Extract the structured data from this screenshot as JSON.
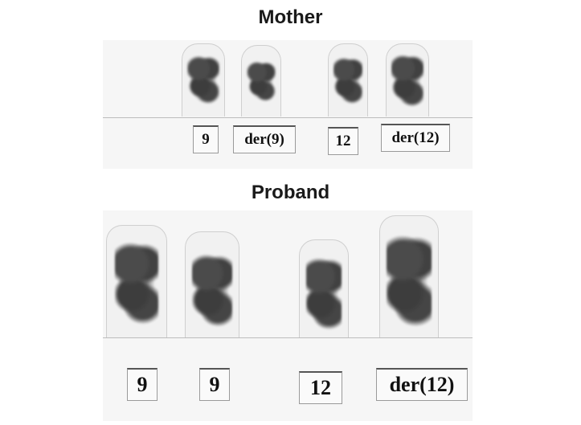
{
  "mother": {
    "title": "Mother",
    "labels": [
      "9",
      "der(9)",
      "12",
      "der(12)"
    ]
  },
  "proband": {
    "title": "Proband",
    "labels": [
      "9",
      "9",
      "12",
      "der(12)"
    ]
  }
}
